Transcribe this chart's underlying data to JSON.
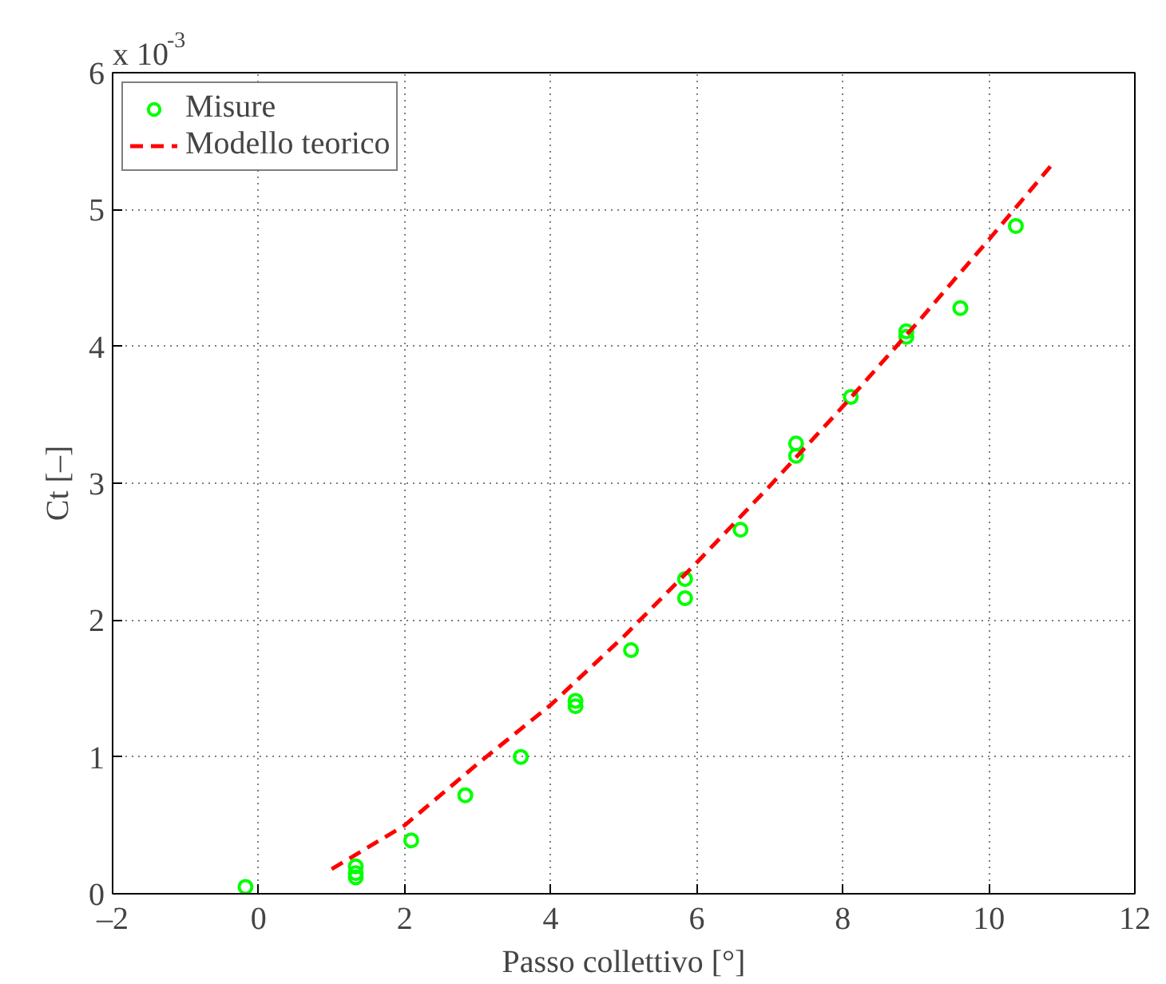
{
  "chart_data": {
    "type": "scatter",
    "xlabel": "Passo collettivo [°]",
    "ylabel": "Ct [–]",
    "annotations": [
      "x 10$^{-3}$"
    ],
    "xlim": [
      -2,
      12
    ],
    "xticks": [
      {
        "value": -2,
        "label": "–2"
      },
      0,
      2,
      4,
      6,
      8,
      10,
      12
    ],
    "ylim": [
      0,
      6
    ],
    "yticks": [
      0,
      1,
      2,
      3,
      4,
      5,
      6
    ],
    "grid": true,
    "legend": "top left",
    "series": [
      {
        "name": "Misure",
        "marker": "circle",
        "color": "#00ff00",
        "x": [
          -0.18,
          1.33,
          1.33,
          1.33,
          2.09,
          2.83,
          3.59,
          4.34,
          4.34,
          5.1,
          5.84,
          5.84,
          6.6,
          7.36,
          7.36,
          8.11,
          8.87,
          8.87,
          9.61,
          10.37
        ],
        "values": [
          0.05,
          0.2,
          0.15,
          0.12,
          0.39,
          0.72,
          1.0,
          1.41,
          1.37,
          1.78,
          2.3,
          2.16,
          2.66,
          3.29,
          3.2,
          3.63,
          4.11,
          4.07,
          4.28,
          4.88
        ]
      },
      {
        "name": "Modello teorico",
        "type": "line",
        "line_style": "dashed",
        "color": "#ff0000",
        "x": [
          1,
          2,
          3,
          4,
          5,
          6,
          7,
          8,
          9,
          10,
          10.9
        ],
        "values": [
          0.18,
          0.5,
          0.95,
          1.38,
          1.88,
          2.42,
          2.98,
          3.56,
          4.16,
          4.78,
          5.35
        ]
      }
    ]
  }
}
